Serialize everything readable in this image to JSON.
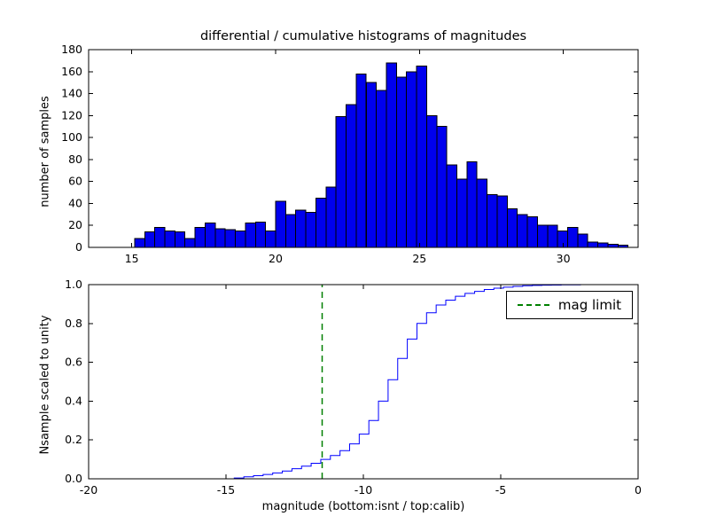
{
  "figure": {
    "background": "#ffffff",
    "axes_color": "#000000"
  },
  "chart_data": [
    {
      "type": "bar",
      "subtype": "histogram",
      "title": "differential / cumulative histograms of magnitudes",
      "ylabel": "number of samples",
      "xlim": [
        13.5,
        32.6
      ],
      "ylim": [
        0,
        180
      ],
      "xticks": [
        15,
        20,
        25,
        30
      ],
      "yticks": [
        0,
        20,
        40,
        60,
        80,
        100,
        120,
        140,
        160,
        180
      ],
      "bin_start": 15.1,
      "bin_width": 0.35,
      "counts": [
        8,
        14,
        18,
        15,
        14,
        8,
        18,
        22,
        17,
        16,
        15,
        22,
        23,
        15,
        42,
        30,
        34,
        32,
        45,
        55,
        119,
        130,
        158,
        150,
        143,
        168,
        155,
        160,
        165,
        120,
        110,
        75,
        62,
        78,
        62,
        48,
        47,
        35,
        30,
        28,
        20,
        20,
        15,
        18,
        12,
        5,
        4,
        3,
        2,
        0
      ],
      "bar_color": "#0000ee",
      "bar_edge_color": "#000000"
    },
    {
      "type": "line",
      "subtype": "cumulative_step",
      "ylabel": "Nsample scaled to unity",
      "xlabel": "magnitude (bottom:isnt / top:calib)",
      "xlim": [
        -20,
        0
      ],
      "ylim": [
        0,
        1
      ],
      "xticks": [
        -20,
        -15,
        -10,
        -5,
        0
      ],
      "ytick_values": [
        0,
        0.2,
        0.4,
        0.6,
        0.8,
        1.0
      ],
      "ytick_labels": [
        "0.0",
        "0.2",
        "0.4",
        "0.6",
        "0.8",
        "1.0"
      ],
      "first_edge": -14.7,
      "bin_width": 0.35,
      "cumulative": [
        0.004,
        0.01,
        0.016,
        0.022,
        0.03,
        0.04,
        0.052,
        0.065,
        0.08,
        0.1,
        0.12,
        0.145,
        0.18,
        0.23,
        0.3,
        0.4,
        0.51,
        0.62,
        0.72,
        0.8,
        0.855,
        0.895,
        0.92,
        0.94,
        0.955,
        0.965,
        0.975,
        0.982,
        0.987,
        0.991,
        0.994,
        0.996,
        0.997,
        0.998,
        0.999,
        0.999,
        1.0,
        1.0
      ],
      "line_color": "#0000ff",
      "vline": {
        "x": -11.5,
        "color": "#008000",
        "style": "dashed",
        "label": "mag limit"
      },
      "legend_position": "upper right"
    }
  ]
}
